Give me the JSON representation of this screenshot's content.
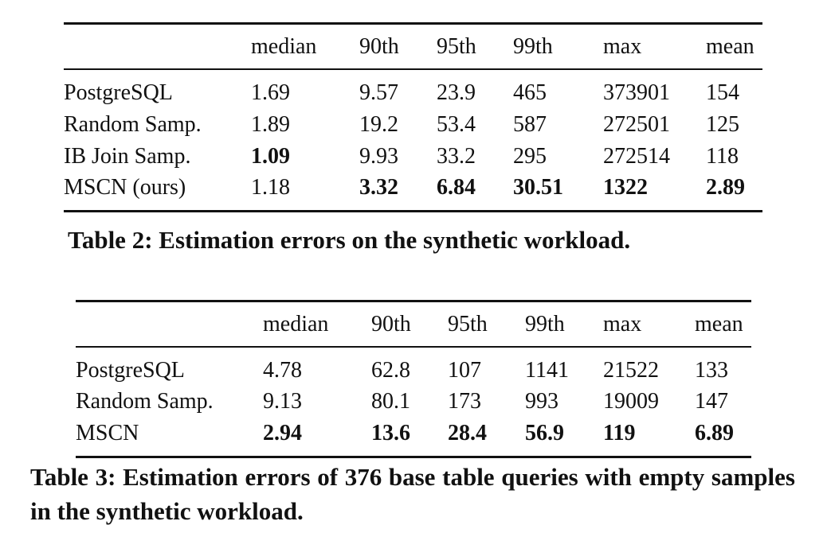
{
  "tables": [
    {
      "columns": [
        "",
        "median",
        "90th",
        "95th",
        "99th",
        "max",
        "mean"
      ],
      "rows": [
        {
          "name": "PostgreSQL",
          "values": [
            "1.69",
            "9.57",
            "23.9",
            "465",
            "373901",
            "154"
          ],
          "bold": [
            false,
            false,
            false,
            false,
            false,
            false
          ]
        },
        {
          "name": "Random Samp.",
          "values": [
            "1.89",
            "19.2",
            "53.4",
            "587",
            "272501",
            "125"
          ],
          "bold": [
            false,
            false,
            false,
            false,
            false,
            false
          ]
        },
        {
          "name": "IB Join Samp.",
          "values": [
            "1.09",
            "9.93",
            "33.2",
            "295",
            "272514",
            "118"
          ],
          "bold": [
            true,
            false,
            false,
            false,
            false,
            false
          ]
        },
        {
          "name": "MSCN (ours)",
          "values": [
            "1.18",
            "3.32",
            "6.84",
            "30.51",
            "1322",
            "2.89"
          ],
          "bold": [
            false,
            true,
            true,
            true,
            true,
            true
          ]
        }
      ],
      "caption": "Table 2: Estimation errors on the synthetic workload."
    },
    {
      "columns": [
        "",
        "median",
        "90th",
        "95th",
        "99th",
        "max",
        "mean"
      ],
      "rows": [
        {
          "name": "PostgreSQL",
          "values": [
            "4.78",
            "62.8",
            "107",
            "1141",
            "21522",
            "133"
          ],
          "bold": [
            false,
            false,
            false,
            false,
            false,
            false
          ]
        },
        {
          "name": "Random Samp.",
          "values": [
            "9.13",
            "80.1",
            "173",
            "993",
            "19009",
            "147"
          ],
          "bold": [
            false,
            false,
            false,
            false,
            false,
            false
          ]
        },
        {
          "name": "MSCN",
          "values": [
            "2.94",
            "13.6",
            "28.4",
            "56.9",
            "119",
            "6.89"
          ],
          "bold": [
            true,
            true,
            true,
            true,
            true,
            true
          ]
        }
      ],
      "caption": "Table 3: Estimation errors of 376 base table queries with empty samples in the synthetic workload."
    }
  ]
}
